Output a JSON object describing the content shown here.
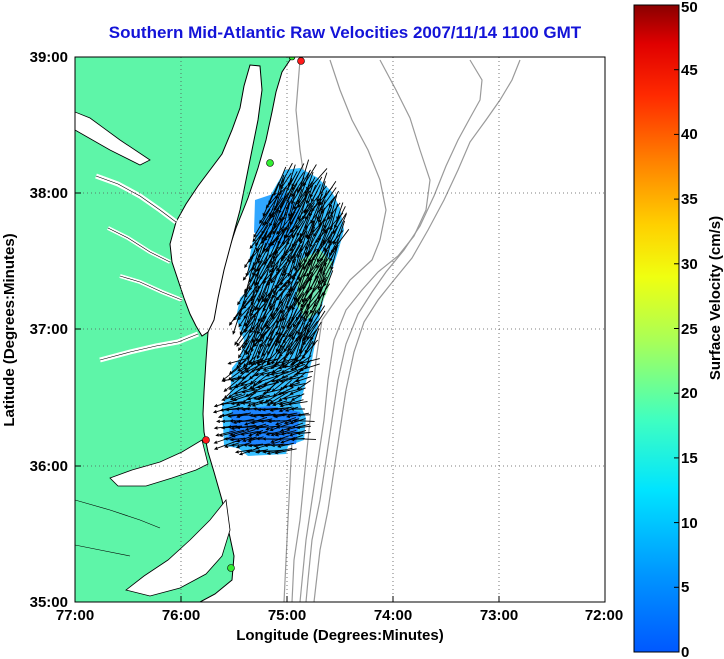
{
  "title": "Southern Mid-Atlantic Raw Velocities 2007/11/14 1100 GMT",
  "map": {
    "xlabel": "Longitude (Degrees:Minutes)",
    "ylabel": "Latitude (Degrees:Minutes)",
    "x_ticks": [
      "77:00",
      "76:00",
      "75:00",
      "74:00",
      "73:00",
      "72:00"
    ],
    "y_ticks": [
      "39:00",
      "38:00",
      "37:00",
      "36:00",
      "35:00"
    ],
    "xlim": [
      -77,
      -72
    ],
    "ylim": [
      35,
      39
    ],
    "grid": "dotted",
    "land_color": "#5ef5a8",
    "coast_color": "#000000",
    "bathymetry_color": "#9a9a9a",
    "station_colors": {
      "red": "#ff1a1a",
      "green": "#33ee33"
    }
  },
  "colorbar": {
    "label": "Surface Velocity (cm/s)",
    "ticks": [
      "0",
      "5",
      "10",
      "15",
      "20",
      "25",
      "30",
      "35",
      "40",
      "45",
      "50"
    ],
    "range": [
      0,
      50
    ],
    "colormap": "jet"
  }
}
